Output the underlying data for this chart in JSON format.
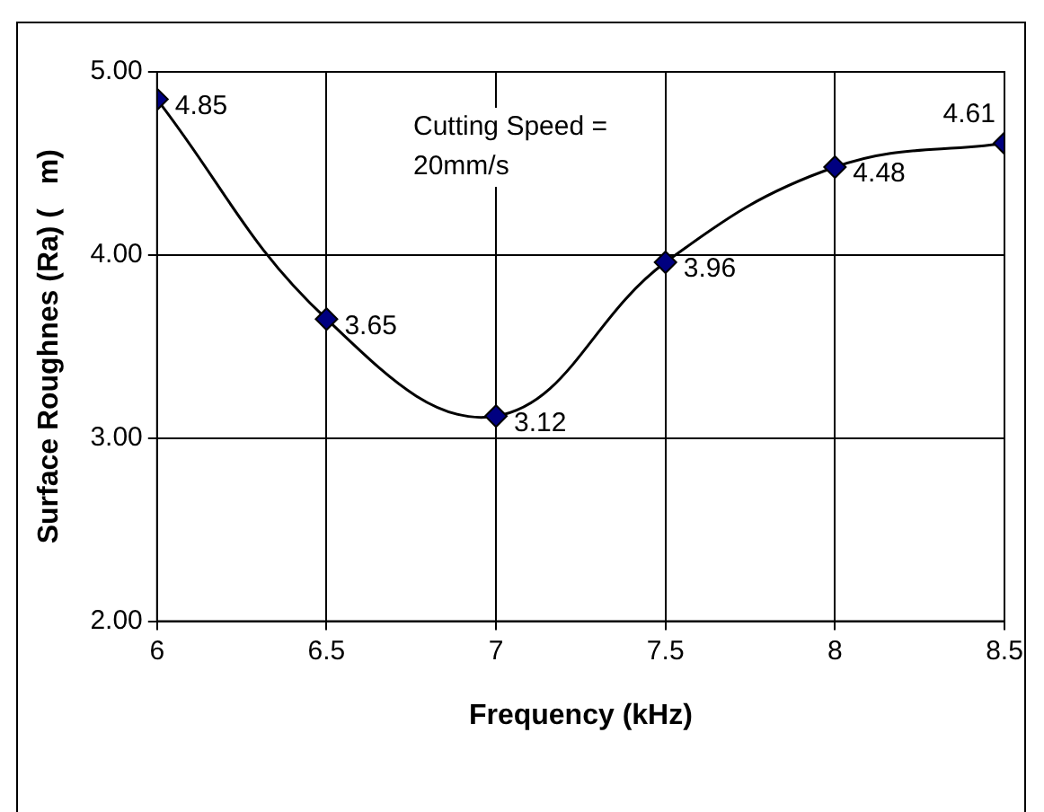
{
  "chart_data": {
    "type": "line",
    "xlabel": "Frequency (kHz)",
    "ylabel": "Surface Roughnes (Ra) (   m)",
    "x": [
      6,
      6.5,
      7,
      7.5,
      8,
      8.5
    ],
    "series": [
      {
        "color": "#000080",
        "values": [
          4.85,
          3.65,
          3.12,
          3.96,
          4.48,
          4.61
        ]
      }
    ],
    "xlim": [
      6,
      8.5
    ],
    "xticks": [
      6,
      6.5,
      7,
      7.5,
      8,
      8.5
    ],
    "ylim": [
      2,
      5
    ],
    "yticks": [
      {
        "value": 2,
        "label": "2.00"
      },
      {
        "value": 3,
        "label": "3.00"
      },
      {
        "value": 4,
        "label": "4.00"
      },
      {
        "value": 5,
        "label": "5.00"
      }
    ],
    "grid": true,
    "marker": "diamond",
    "data_labels": true,
    "legend": false,
    "annotations": [
      "Cutting Speed = 20mm/s"
    ]
  }
}
